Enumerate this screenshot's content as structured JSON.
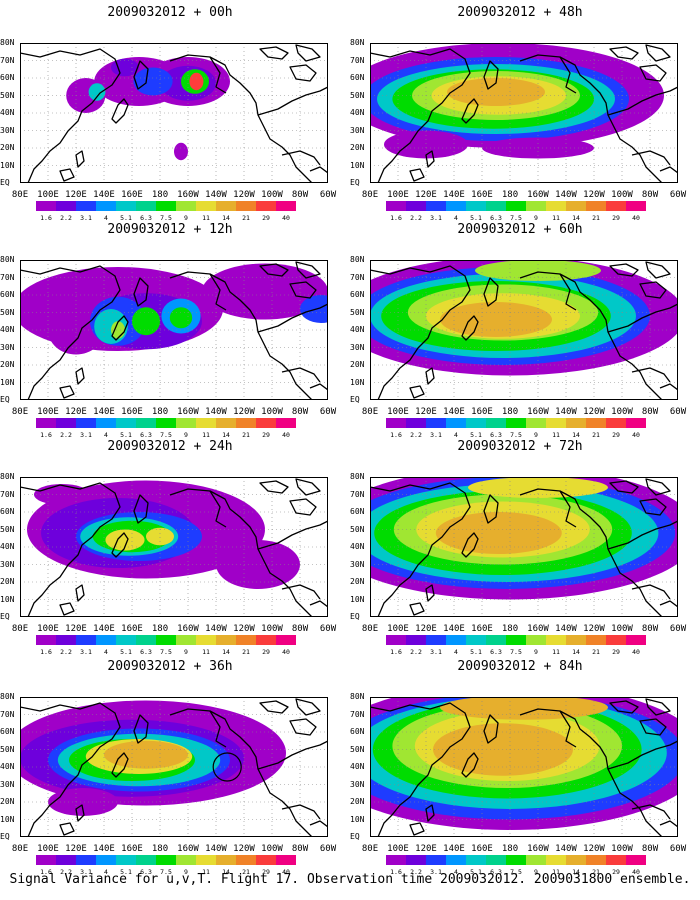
{
  "caption": "Signal Variance for u,v,T. Flight 17. Observation time 2009032012. 2009031800 ensemble.",
  "panels": [
    {
      "title": "2009032012 + 00h",
      "lead": 0
    },
    {
      "title": "2009032012 + 48h",
      "lead": 48
    },
    {
      "title": "2009032012 + 12h",
      "lead": 12
    },
    {
      "title": "2009032012 + 60h",
      "lead": 60
    },
    {
      "title": "2009032012 + 24h",
      "lead": 24
    },
    {
      "title": "2009032012 + 72h",
      "lead": 72
    },
    {
      "title": "2009032012 + 36h",
      "lead": 36
    },
    {
      "title": "2009032012 + 84h",
      "lead": 84
    }
  ],
  "x_tick_labels": [
    "80E",
    "100E",
    "120E",
    "140E",
    "160E",
    "180",
    "160W",
    "140W",
    "120W",
    "100W",
    "80W",
    "60W"
  ],
  "y_tick_labels": [
    "EQ",
    "10N",
    "20N",
    "30N",
    "40N",
    "50N",
    "60N",
    "70N",
    "80N"
  ],
  "colorbar": {
    "levels": [
      "1.6",
      "2.2",
      "3.1",
      "4",
      "5.1",
      "6.3",
      "7.5",
      "9",
      "11",
      "14",
      "21",
      "29",
      "40"
    ],
    "colors": [
      "#a000c8",
      "#6e00dc",
      "#1e3cff",
      "#0096ff",
      "#00c8c8",
      "#00d28c",
      "#00dc00",
      "#a0e632",
      "#e6dc32",
      "#e6af2d",
      "#f08228",
      "#fa3c3c",
      "#f00082"
    ]
  }
}
